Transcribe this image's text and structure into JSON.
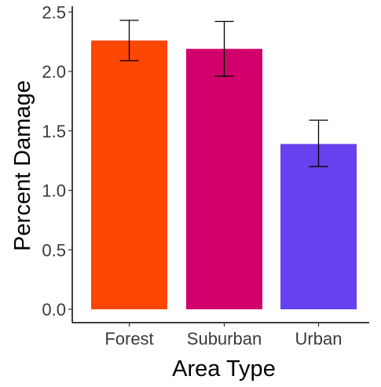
{
  "chart_data": {
    "type": "bar",
    "title": "",
    "xlabel": "Area Type",
    "ylabel": "Percent Damage",
    "categories": [
      "Forest",
      "Suburban",
      "Urban"
    ],
    "values": [
      2.26,
      2.19,
      1.39
    ],
    "error_low": [
      2.09,
      1.96,
      1.2
    ],
    "error_high": [
      2.43,
      2.42,
      1.59
    ],
    "colors": [
      "#FC4603",
      "#D2006C",
      "#6542ED"
    ],
    "ylim": [
      0,
      2.5
    ],
    "yticks": [
      0.0,
      0.5,
      1.0,
      1.5,
      2.0,
      2.5
    ],
    "ytick_labels": [
      "0.0",
      "0.5",
      "1.0",
      "1.5",
      "2.0",
      "2.5"
    ],
    "grid": false,
    "legend": "none"
  }
}
